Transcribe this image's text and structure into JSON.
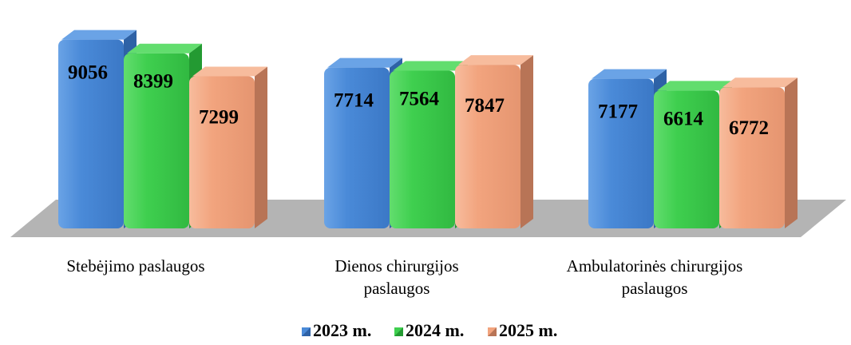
{
  "chart_data": {
    "type": "bar",
    "categories": [
      [
        "Stebėjimo paslaugos"
      ],
      [
        "Dienos chirurgijos",
        "paslaugos"
      ],
      [
        "Ambulatorinės chirurgijos",
        "paslaugos"
      ]
    ],
    "series": [
      {
        "name": "2023 m.",
        "values": [
          9056,
          7714,
          7177
        ]
      },
      {
        "name": "2024 m.",
        "values": [
          8399,
          7564,
          6614
        ]
      },
      {
        "name": "2025 m.",
        "values": [
          7299,
          7847,
          6772
        ]
      }
    ],
    "title": "",
    "xlabel": "",
    "ylabel": "",
    "ylim": [
      0,
      9500
    ],
    "grid": false,
    "legend_position": "bottom",
    "colors": {
      "2023 m.": {
        "front": "#4a8ad8",
        "side": "#2e62a6",
        "top": "#6aa3e6"
      },
      "2024 m.": {
        "front": "#3fcf4f",
        "side": "#239a32",
        "top": "#62dd6e"
      },
      "2025 m.": {
        "front": "#f2a47e",
        "side": "#b87456",
        "top": "#f7bc9d"
      },
      "floor": "#b4b4b4"
    }
  }
}
